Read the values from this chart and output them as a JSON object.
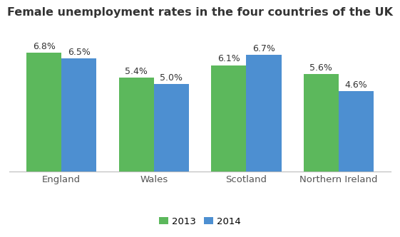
{
  "title": "Female unemployment rates in the four countries of the UK",
  "categories": [
    "England",
    "Wales",
    "Scotland",
    "Northern Ireland"
  ],
  "values_2013": [
    6.8,
    5.4,
    6.1,
    5.6
  ],
  "values_2014": [
    6.5,
    5.0,
    6.7,
    4.6
  ],
  "color_2013": "#5cb85c",
  "color_2014": "#4d8fd1",
  "legend_labels": [
    "2013",
    "2014"
  ],
  "ylim": [
    0,
    8.5
  ],
  "bar_width": 0.38,
  "title_fontsize": 11.5,
  "label_fontsize": 9,
  "tick_fontsize": 9.5,
  "legend_fontsize": 9.5,
  "background_color": "#ffffff",
  "title_color": "#333333",
  "tick_color": "#555555",
  "label_color": "#333333"
}
